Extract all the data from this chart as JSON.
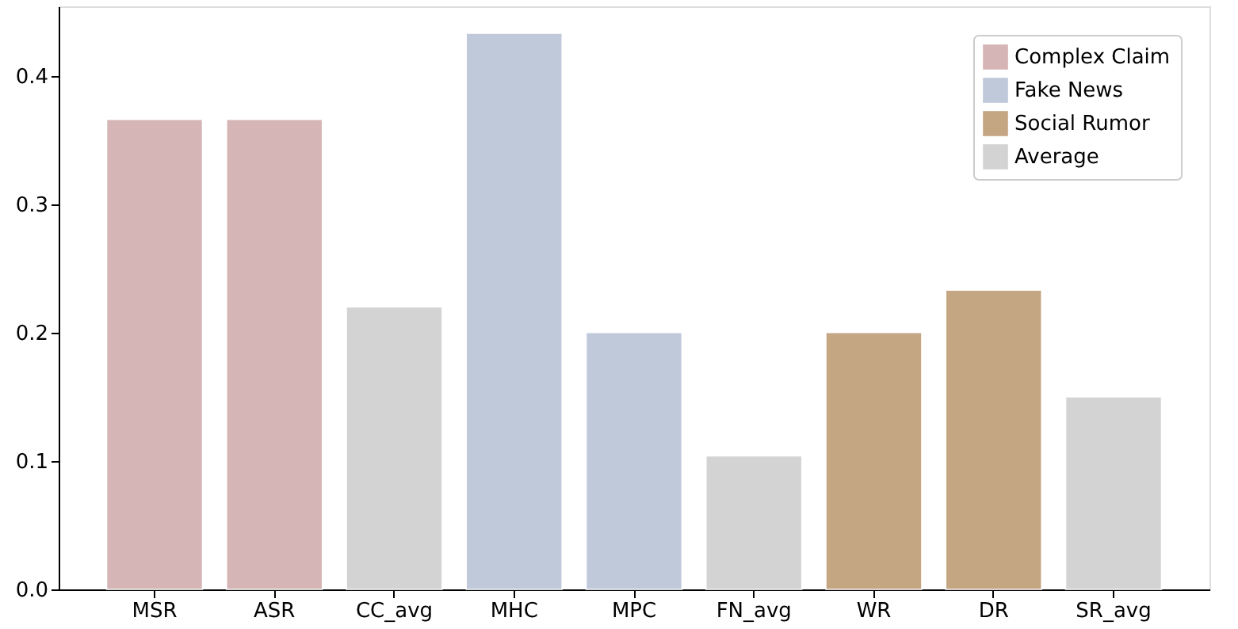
{
  "chart_data": {
    "type": "bar",
    "categories": [
      "MSR",
      "ASR",
      "CC_avg",
      "MHC",
      "MPC",
      "FN_avg",
      "WR",
      "DR",
      "SR_avg"
    ],
    "series": [
      {
        "name": "Complex Claim",
        "color": "#d5b5b5",
        "values": [
          0.366,
          0.366,
          null,
          null,
          null,
          null,
          null,
          null,
          null
        ]
      },
      {
        "name": "Fake News",
        "color": "#c0c9da",
        "values": [
          null,
          null,
          null,
          0.433,
          0.2,
          null,
          null,
          null,
          null
        ]
      },
      {
        "name": "Social Rumor",
        "color": "#c5a683",
        "values": [
          null,
          null,
          null,
          null,
          null,
          null,
          0.2,
          0.233,
          null
        ]
      },
      {
        "name": "Average",
        "color": "#d3d3d3",
        "values": [
          null,
          null,
          0.22,
          null,
          null,
          0.104,
          null,
          null,
          0.15
        ]
      }
    ],
    "ylim": [
      0,
      0.454
    ],
    "yticks": [
      {
        "value": 0,
        "label": "0.0"
      },
      0.1,
      0.2,
      0.3,
      0.4
    ],
    "grid": false,
    "legend": "top right"
  }
}
